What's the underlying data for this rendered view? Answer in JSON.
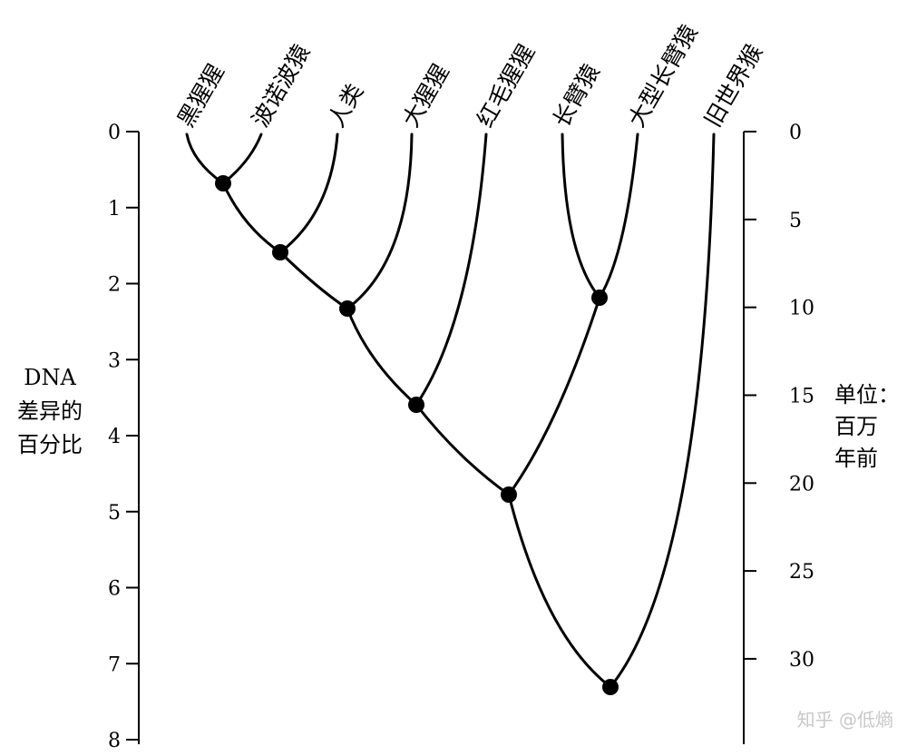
{
  "left_axis": {
    "title_lines": [
      "DNA",
      "差异的",
      "百分比"
    ],
    "ticks": [
      0,
      1,
      2,
      3,
      4,
      5,
      6,
      7,
      8
    ],
    "range": [
      0,
      8
    ]
  },
  "right_axis": {
    "title_lines": [
      "单位：",
      "百万",
      "年前"
    ],
    "ticks": [
      0,
      5,
      10,
      15,
      20,
      25,
      30
    ],
    "range": [
      0,
      34.6
    ]
  },
  "species": [
    "黑猩猩",
    "波诺波猿",
    "人类",
    "大猩猩",
    "红毛猩猩",
    "长臂猿",
    "大型长臂猿",
    "旧世界猴"
  ],
  "nodes": [
    {
      "children": [
        "黑猩猩",
        "波诺波猿"
      ],
      "dna_difference_percent": 0.7
    },
    {
      "children": [
        "node-1",
        "人类"
      ],
      "dna_difference_percent": 1.6
    },
    {
      "children": [
        "node-2",
        "大猩猩"
      ],
      "dna_difference_percent": 2.35
    },
    {
      "children": [
        "node-3",
        "红毛猩猩"
      ],
      "dna_difference_percent": 3.6
    },
    {
      "children": [
        "长臂猿",
        "大型长臂猿"
      ],
      "dna_difference_percent": 2.2
    },
    {
      "children": [
        "node-4",
        "node-5"
      ],
      "dna_difference_percent": 4.8
    },
    {
      "children": [
        "node-6",
        "旧世界猴"
      ],
      "dna_difference_percent": 7.3
    }
  ],
  "watermark": "知乎 @低熵"
}
